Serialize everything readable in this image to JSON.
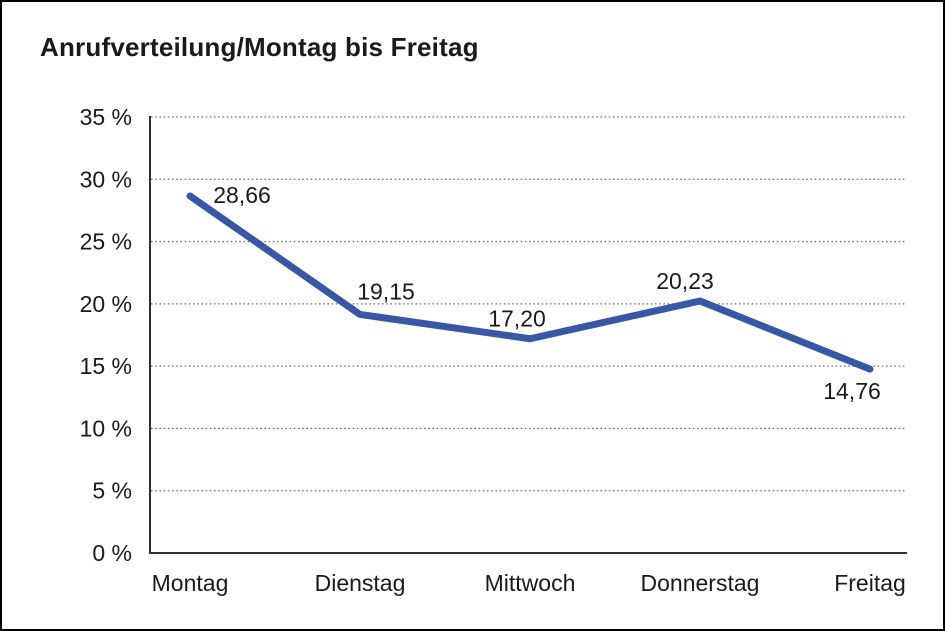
{
  "chart_data": {
    "type": "line",
    "title": "Anrufverteilung/Montag bis Freitag",
    "categories": [
      "Montag",
      "Dienstag",
      "Mittwoch",
      "Donnerstag",
      "Freitag"
    ],
    "series": [
      {
        "name": "Anrufverteilung",
        "values": [
          28.66,
          19.15,
          17.2,
          20.23,
          14.76
        ],
        "data_labels": [
          "28,66",
          "19,15",
          "17,20",
          "20,23",
          "14,76"
        ]
      }
    ],
    "xlabel": "",
    "ylabel": "",
    "ylim": [
      0,
      35
    ],
    "y_ticks": [
      0,
      5,
      10,
      15,
      20,
      25,
      30,
      35
    ],
    "y_tick_labels": [
      "0 %",
      "5 %",
      "10 %",
      "15 %",
      "20 %",
      "25 %",
      "30 %",
      "35 %"
    ],
    "grid": "horizontal-dotted",
    "legend": "none",
    "decimal_separator": ",",
    "colors": {
      "line": "#3A57A5",
      "text": "#1a1a1a",
      "axis": "#2e2e2e",
      "grid": "#6e6e6e",
      "background": "#ffffff",
      "border": "#000000"
    }
  }
}
